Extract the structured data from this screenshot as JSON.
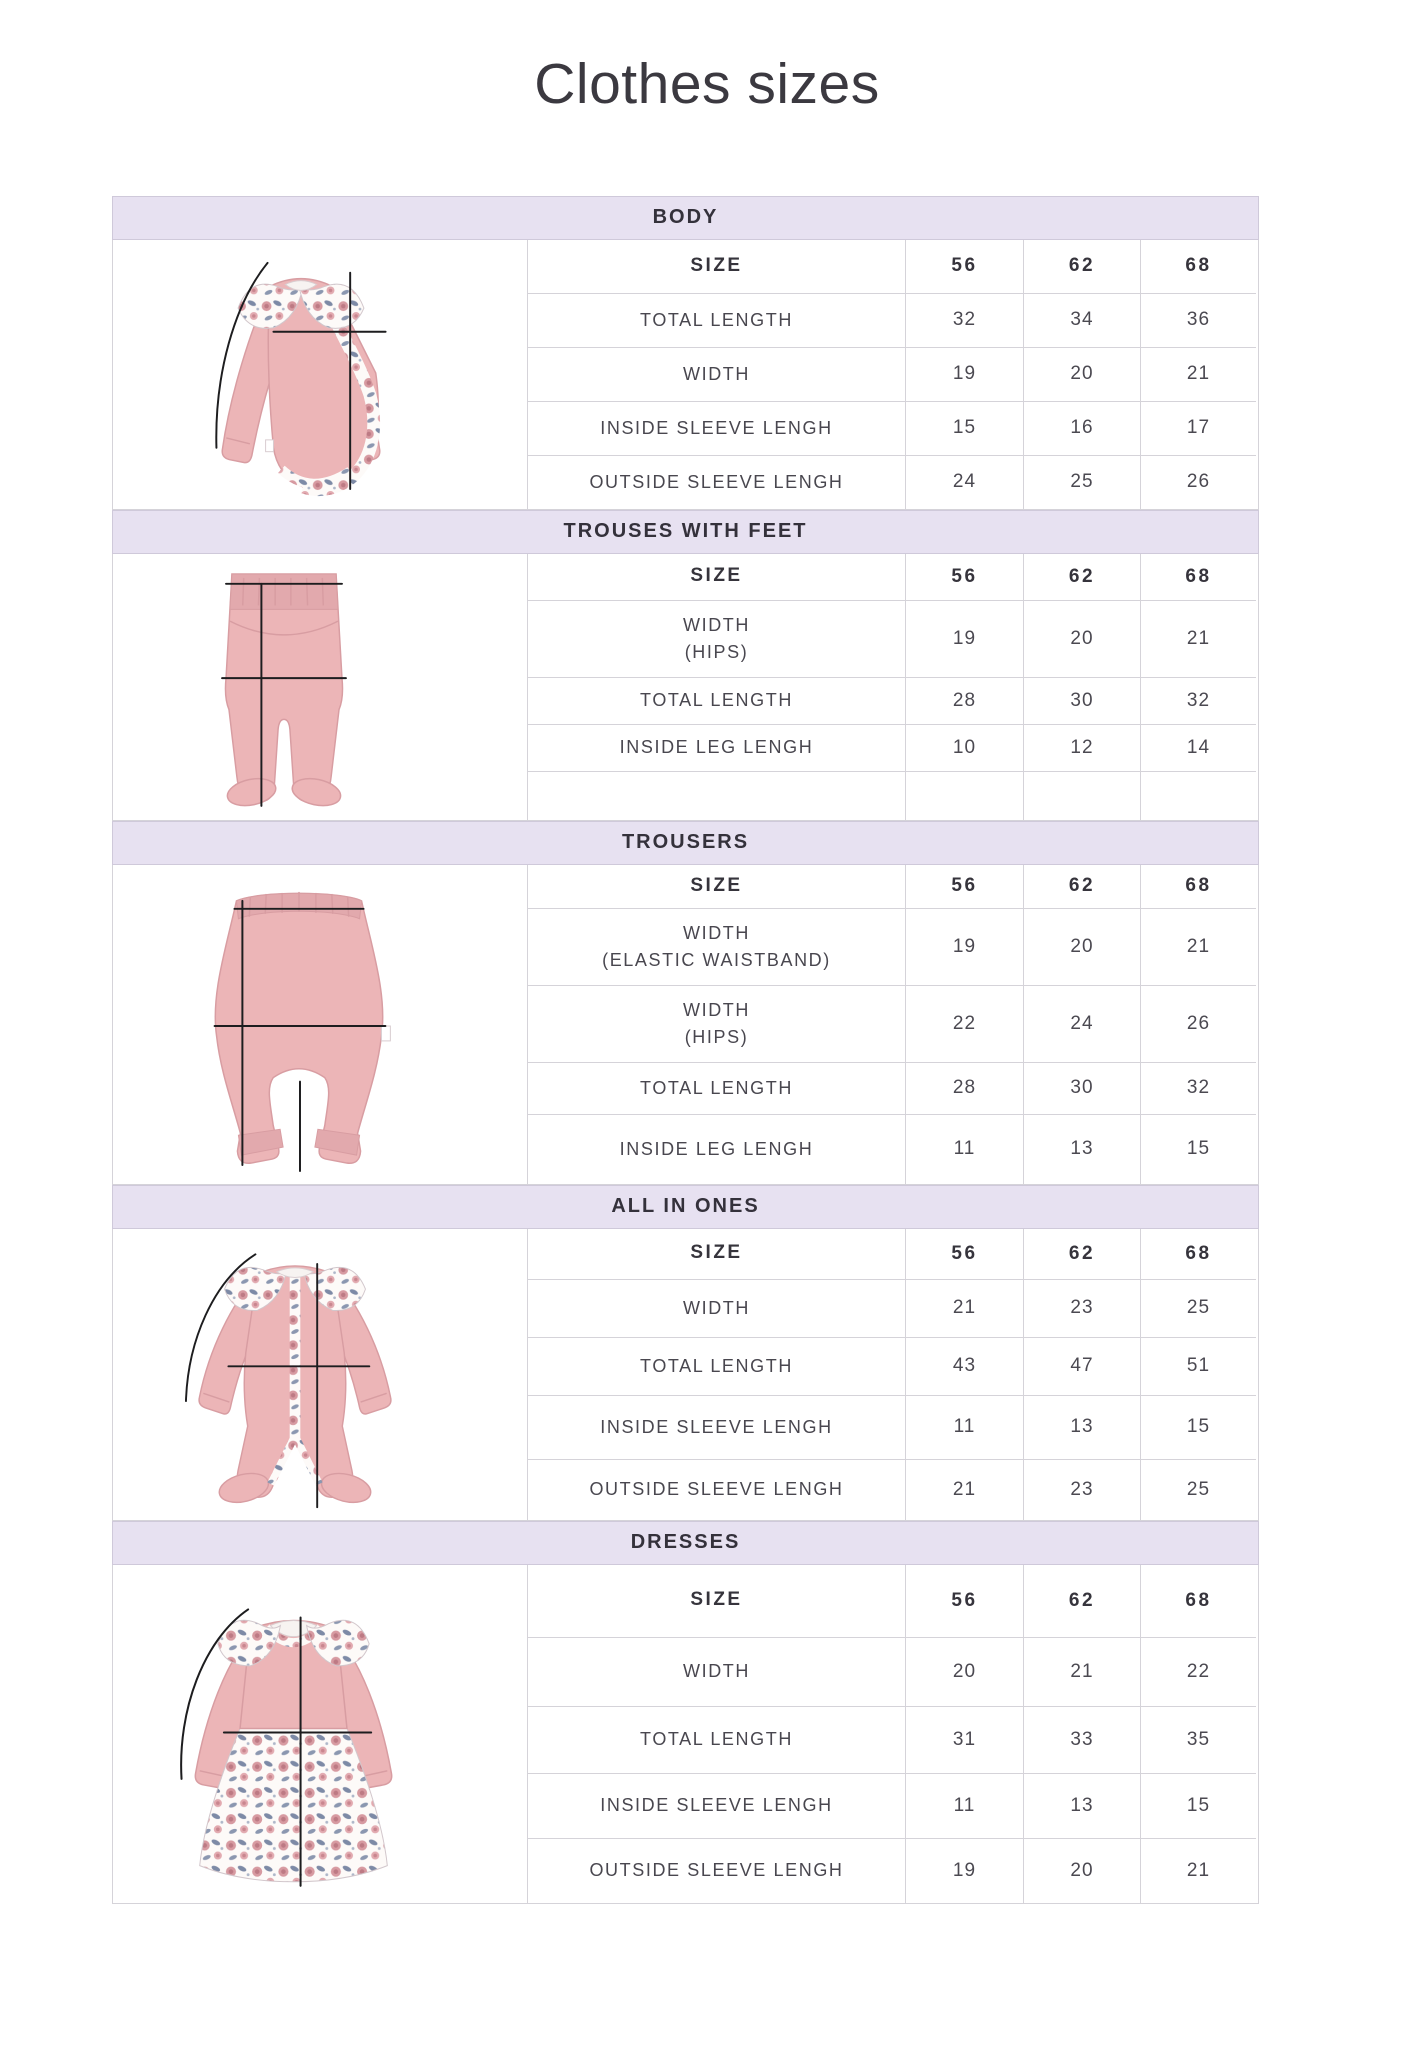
{
  "page_title": "Clothes sizes",
  "size_column_label": "SIZE",
  "sizes": [
    "56",
    "62",
    "68"
  ],
  "colors": {
    "header_bar": "#e7e1f1",
    "header_text": "#34313b",
    "table_border": "#d5d3d9",
    "label_text": "#49474f",
    "garment_pink": "#ecb5b7",
    "measure_line": "#1d1d1f"
  },
  "sections": [
    {
      "title": "BODY",
      "illustration": "bodysuit-image",
      "rows": [
        {
          "label_lines": [
            "TOTAL LENGTH"
          ],
          "values": [
            "32",
            "34",
            "36"
          ]
        },
        {
          "label_lines": [
            "WIDTH"
          ],
          "values": [
            "19",
            "20",
            "21"
          ]
        },
        {
          "label_lines": [
            "INSIDE SLEEVE LENGH"
          ],
          "values": [
            "15",
            "16",
            "17"
          ]
        },
        {
          "label_lines": [
            "OUTSIDE SLEEVE LENGH"
          ],
          "values": [
            "24",
            "25",
            "26"
          ]
        }
      ]
    },
    {
      "title": "TROUSES WITH FEET",
      "illustration": "footed-trousers-image",
      "rows": [
        {
          "label_lines": [
            "WIDTH",
            "(HIPS)"
          ],
          "values": [
            "19",
            "20",
            "21"
          ]
        },
        {
          "label_lines": [
            "TOTAL LENGTH"
          ],
          "values": [
            "28",
            "30",
            "32"
          ]
        },
        {
          "label_lines": [
            "INSIDE LEG LENGH"
          ],
          "values": [
            "10",
            "12",
            "14"
          ]
        }
      ]
    },
    {
      "title": "TROUSERS",
      "illustration": "trousers-image",
      "rows": [
        {
          "label_lines": [
            "WIDTH",
            "(ELASTIC WAISTBAND)"
          ],
          "values": [
            "19",
            "20",
            "21"
          ]
        },
        {
          "label_lines": [
            "WIDTH",
            "(HIPS)"
          ],
          "values": [
            "22",
            "24",
            "26"
          ]
        },
        {
          "label_lines": [
            "TOTAL LENGTH"
          ],
          "values": [
            "28",
            "30",
            "32"
          ]
        },
        {
          "label_lines": [
            "INSIDE LEG LENGH"
          ],
          "values": [
            "11",
            "13",
            "15"
          ]
        }
      ]
    },
    {
      "title": "ALL IN ONES",
      "illustration": "all-in-one-image",
      "rows": [
        {
          "label_lines": [
            "WIDTH"
          ],
          "values": [
            "21",
            "23",
            "25"
          ]
        },
        {
          "label_lines": [
            "TOTAL LENGTH"
          ],
          "values": [
            "43",
            "47",
            "51"
          ]
        },
        {
          "label_lines": [
            "INSIDE SLEEVE LENGH"
          ],
          "values": [
            "11",
            "13",
            "15"
          ]
        },
        {
          "label_lines": [
            "OUTSIDE SLEEVE LENGH"
          ],
          "values": [
            "21",
            "23",
            "25"
          ]
        }
      ]
    },
    {
      "title": "DRESSES",
      "illustration": "dress-image",
      "rows": [
        {
          "label_lines": [
            "WIDTH"
          ],
          "values": [
            "20",
            "21",
            "22"
          ]
        },
        {
          "label_lines": [
            "TOTAL LENGTH"
          ],
          "values": [
            "31",
            "33",
            "35"
          ]
        },
        {
          "label_lines": [
            "INSIDE SLEEVE LENGH"
          ],
          "values": [
            "11",
            "13",
            "15"
          ]
        },
        {
          "label_lines": [
            "OUTSIDE SLEEVE LENGH"
          ],
          "values": [
            "19",
            "20",
            "21"
          ]
        }
      ]
    }
  ]
}
